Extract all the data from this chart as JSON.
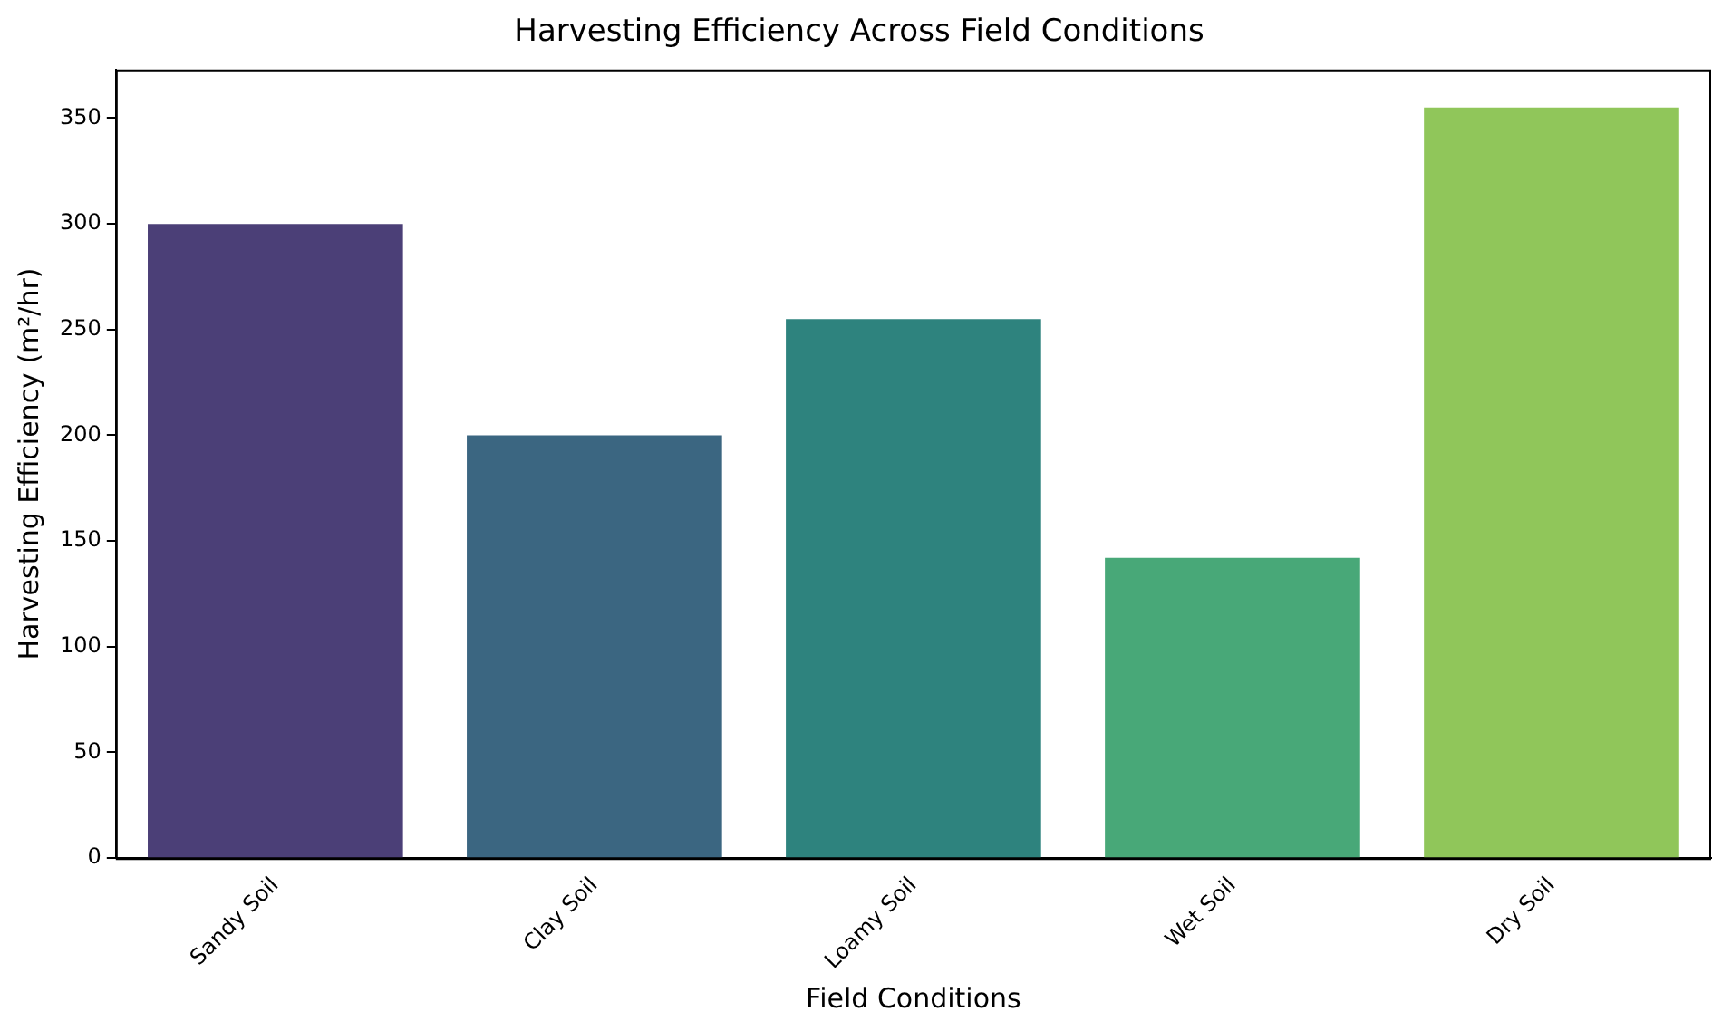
{
  "chart_data": {
    "type": "bar",
    "title": "Harvesting Efficiency Across Field Conditions",
    "xlabel": "Field Conditions",
    "ylabel": "Harvesting Efficiency (m²/hr)",
    "categories": [
      "Sandy Soil",
      "Clay Soil",
      "Loamy Soil",
      "Wet Soil",
      "Dry Soil"
    ],
    "values": [
      300,
      200,
      255,
      142,
      355
    ],
    "colors": [
      "#4b3f77",
      "#3b6681",
      "#2e837e",
      "#48a878",
      "#90c65a"
    ],
    "ylim": [
      0,
      373
    ],
    "yticks": [
      0,
      50,
      100,
      150,
      200,
      250,
      300,
      350
    ],
    "grid": false,
    "legend": false
  }
}
